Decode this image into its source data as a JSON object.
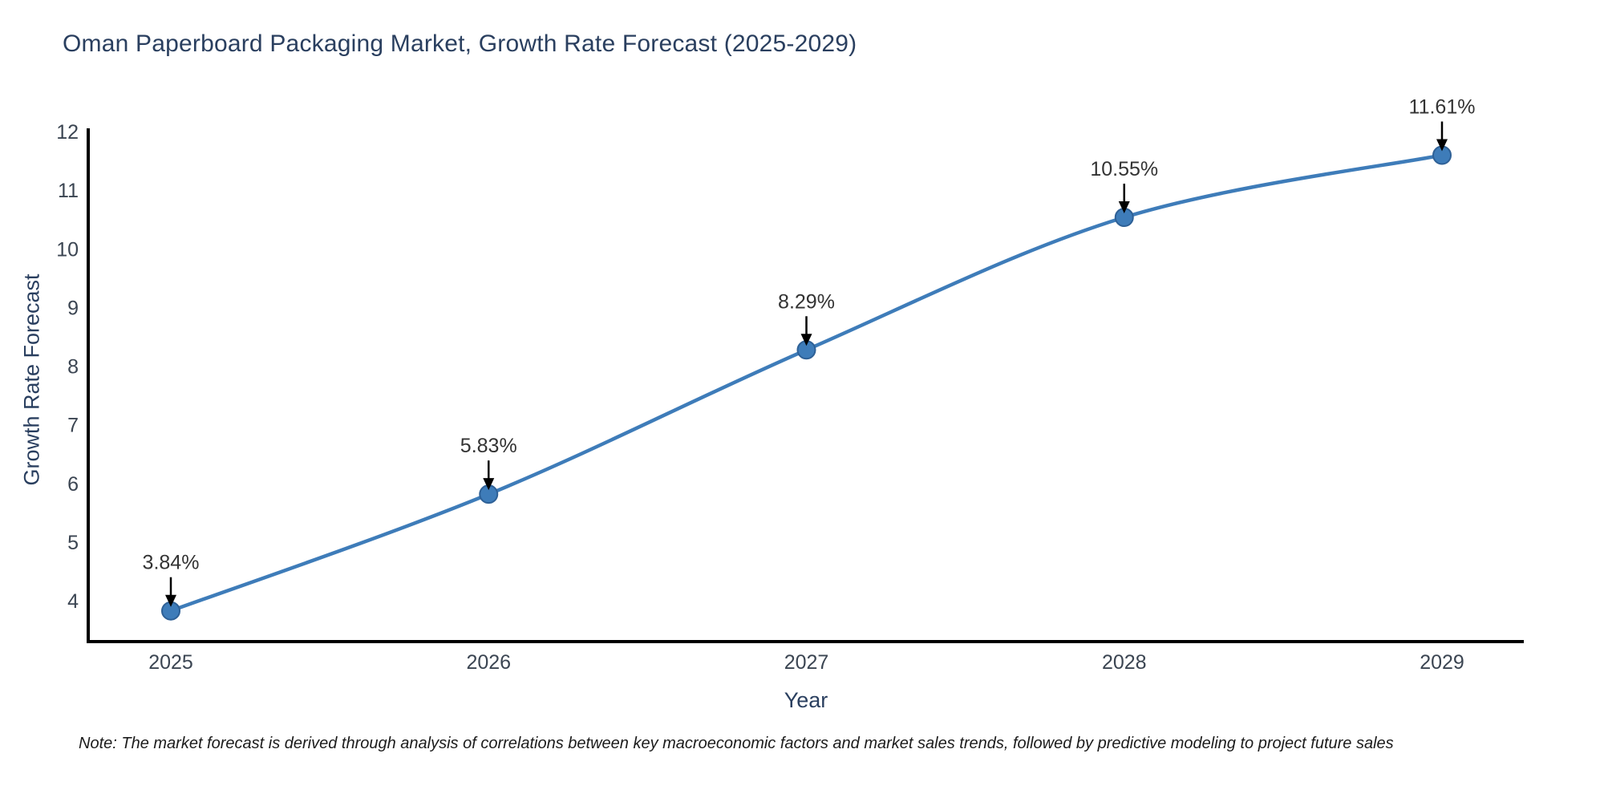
{
  "title": "Oman Paperboard Packaging Market, Growth Rate Forecast (2025-2029)",
  "note": "Note: The market forecast is derived through analysis of correlations between key macroeconomic factors and market sales trends, followed by predictive modeling to project future sales",
  "chart_data": {
    "type": "line",
    "title": "Oman Paperboard Packaging Market, Growth Rate Forecast (2025-2029)",
    "xlabel": "Year",
    "ylabel": "Growth Rate Forecast",
    "categories": [
      "2025",
      "2026",
      "2027",
      "2028",
      "2029"
    ],
    "values": [
      3.84,
      5.83,
      8.29,
      10.55,
      11.61
    ],
    "point_labels": [
      "3.84%",
      "5.83%",
      "8.29%",
      "10.55%",
      "11.61%"
    ],
    "y_ticks": [
      4,
      5,
      6,
      7,
      8,
      9,
      10,
      11,
      12
    ],
    "ylim": [
      4,
      12
    ],
    "grid": "off",
    "legend": "none",
    "colors": {
      "line": "#3E7CB9",
      "marker_fill": "#3E7CB9",
      "marker_edge": "#2E6096",
      "axis_spine": "#000000",
      "title_text": "#2a3f5f",
      "tick_text": "#3b4552",
      "annotation_text": "#333333",
      "annotation_arrow": "#000000",
      "note_text": "#1c1c1c"
    }
  }
}
